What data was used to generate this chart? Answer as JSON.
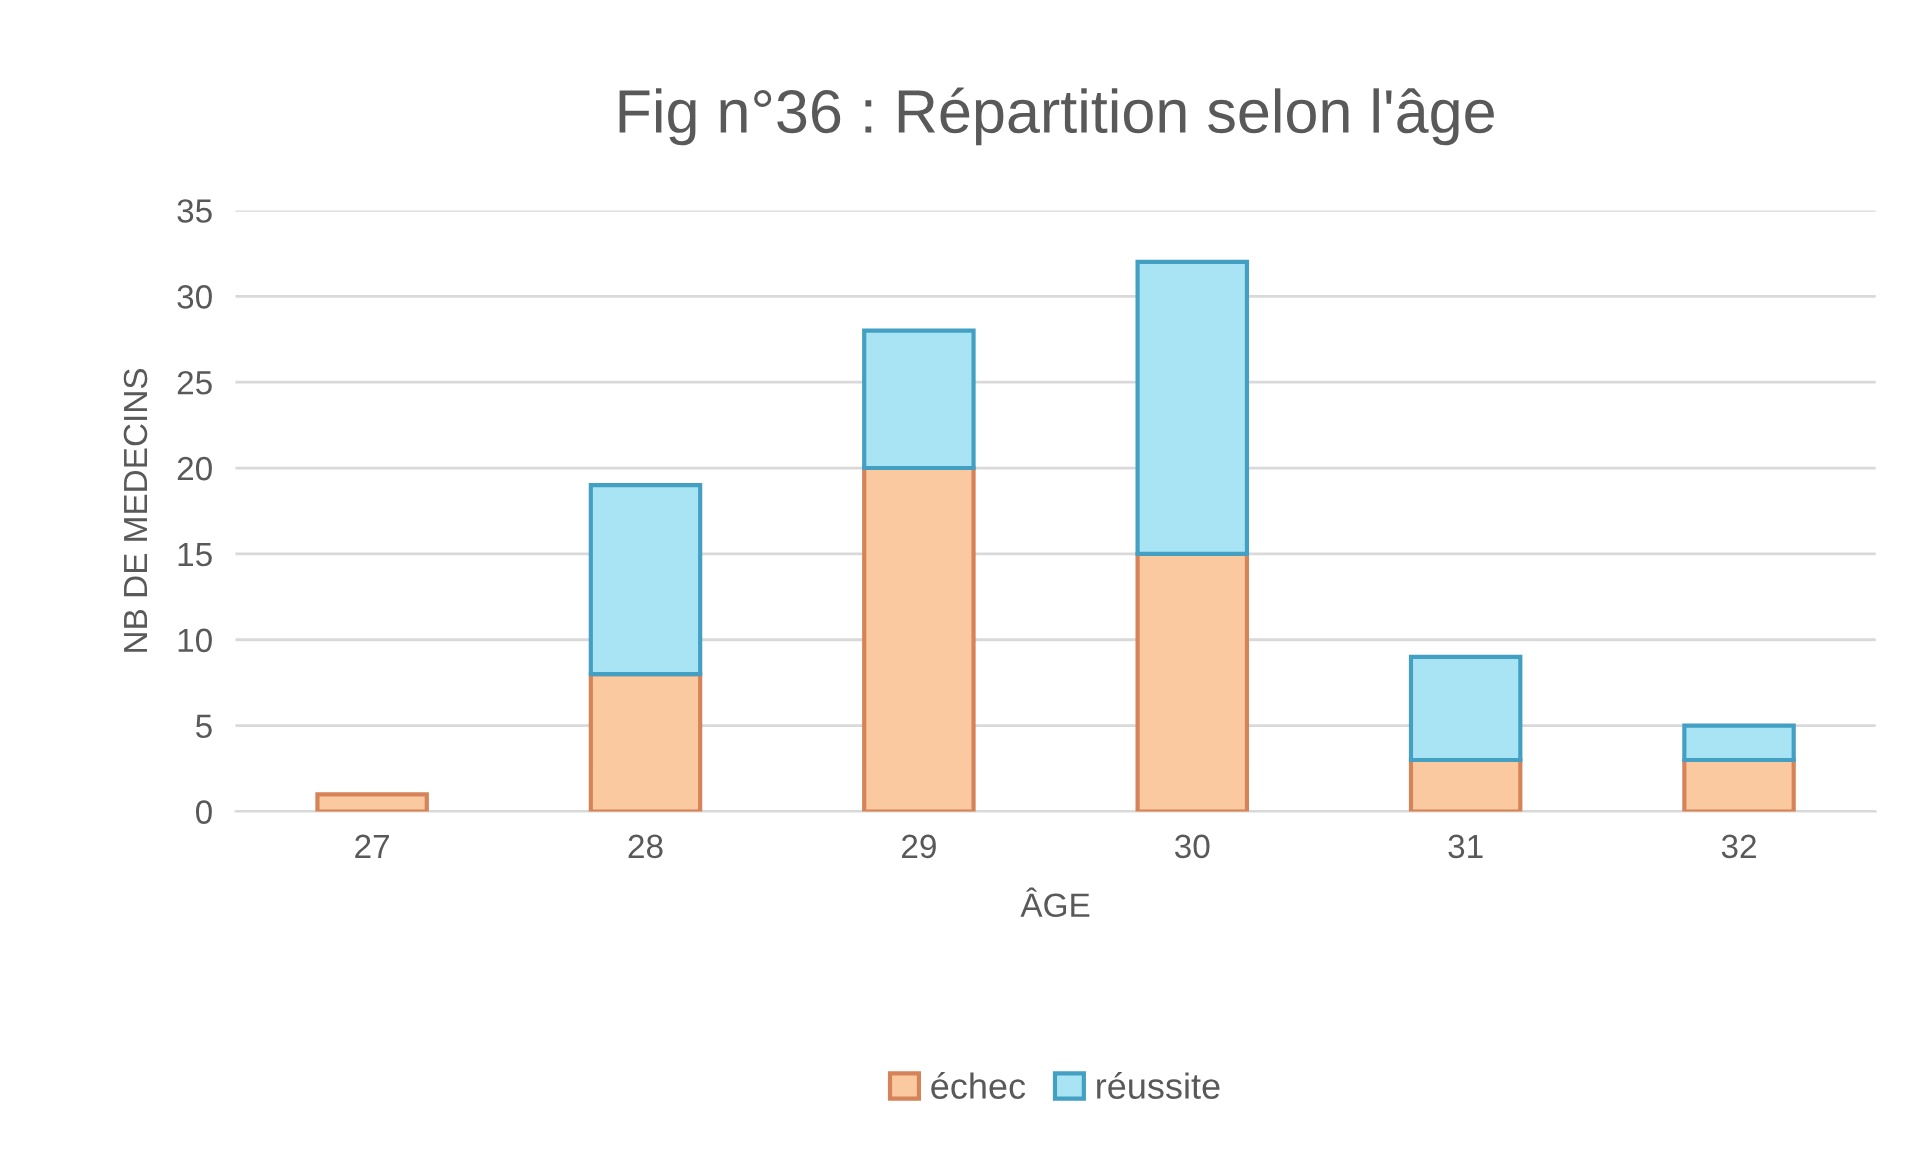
{
  "chart_data": {
    "type": "bar",
    "title": "Fig n°36 : Répartition selon l'âge",
    "xlabel": "ÂGE",
    "ylabel": "NB DE MEDECINS",
    "categories": [
      "27",
      "28",
      "29",
      "30",
      "31",
      "32"
    ],
    "stacked": true,
    "series": [
      {
        "name": "échec",
        "color": "#fbc9a0",
        "values": [
          1,
          8,
          20,
          15,
          3,
          3
        ]
      },
      {
        "name": "réussite",
        "color": "#a8e4f4",
        "values": [
          null,
          11,
          8,
          17,
          6,
          2
        ]
      }
    ],
    "ylim": [
      0,
      35
    ],
    "yticks": [
      0,
      5,
      10,
      15,
      20,
      25,
      30,
      35
    ],
    "grid": "y",
    "legend": "bottom"
  }
}
